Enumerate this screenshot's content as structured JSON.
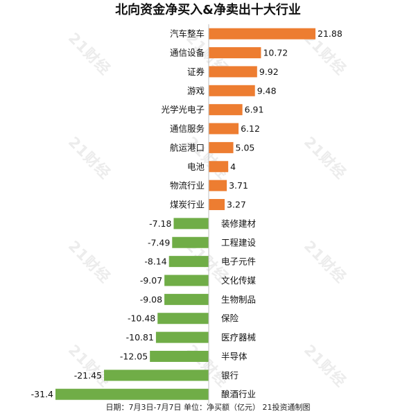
{
  "chart_data": {
    "type": "bar",
    "orientation": "horizontal",
    "title": "北向资金净买入&净卖出十大行业",
    "categories": [
      "汽车整车",
      "通信设备",
      "证券",
      "游戏",
      "光学光电子",
      "通信服务",
      "航运港口",
      "电池",
      "物流行业",
      "煤炭行业",
      "装修建材",
      "工程建设",
      "电子元件",
      "文化传媒",
      "生物制品",
      "保险",
      "医疗器械",
      "半导体",
      "银行",
      "酿酒行业"
    ],
    "values": [
      21.88,
      10.72,
      9.92,
      9.48,
      6.91,
      6.12,
      5.05,
      4,
      3.71,
      3.27,
      -7.18,
      -7.49,
      -8.14,
      -9.07,
      -9.08,
      -10.48,
      -10.81,
      -12.05,
      -21.45,
      -31.4
    ],
    "value_labels": [
      "21.88",
      "10.72",
      "9.92",
      "9.48",
      "6.91",
      "6.12",
      "5.05",
      "4",
      "3.71",
      "3.27",
      "-7.18",
      "-7.49",
      "-8.14",
      "-9.07",
      "-9.08",
      "-10.48",
      "-10.81",
      "-12.05",
      "-21.45",
      "-31.4"
    ],
    "xlim": [
      -31.4,
      21.88
    ],
    "positive_color": "#ed7d31",
    "negative_color": "#70ad47",
    "axis_color": "#bfbfbf",
    "grid": false,
    "legend": "none"
  },
  "footer": "日期：7月3日-7月7日 单位：净买额（亿元） 21投资通制图",
  "watermark_text": "21财经"
}
